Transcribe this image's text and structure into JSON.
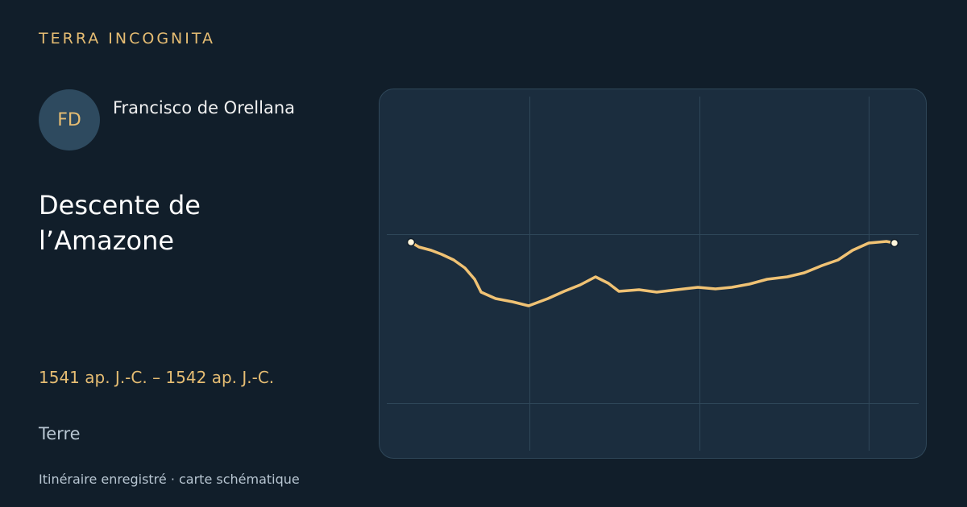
{
  "brand": "TERRA INCOGNITA",
  "person": {
    "initials": "FD",
    "name": "Francisco de Orellana"
  },
  "title": "Descente de l’Amazone",
  "dates": "1541 ap. J.-C. – 1542 ap. J.-C.",
  "realm": "Terre",
  "footer": "Itinéraire enregistré · carte schématique"
}
